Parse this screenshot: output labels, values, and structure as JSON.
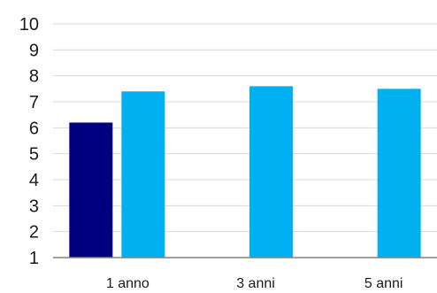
{
  "chart_data": {
    "type": "bar",
    "categories": [
      "1 anno",
      "3 anni",
      "5 anni"
    ],
    "series": [
      {
        "color": "#000080",
        "values": [
          6.2,
          null,
          null
        ]
      },
      {
        "color": "#00b0f0",
        "values": [
          7.4,
          7.6,
          7.5
        ]
      }
    ],
    "y_ticks": [
      "1",
      "2",
      "3",
      "4",
      "5",
      "6",
      "7",
      "8",
      "9",
      "10"
    ],
    "ylim": [
      1,
      10
    ],
    "grid": true,
    "legend": "none",
    "title": "",
    "xlabel": "",
    "ylabel": ""
  }
}
